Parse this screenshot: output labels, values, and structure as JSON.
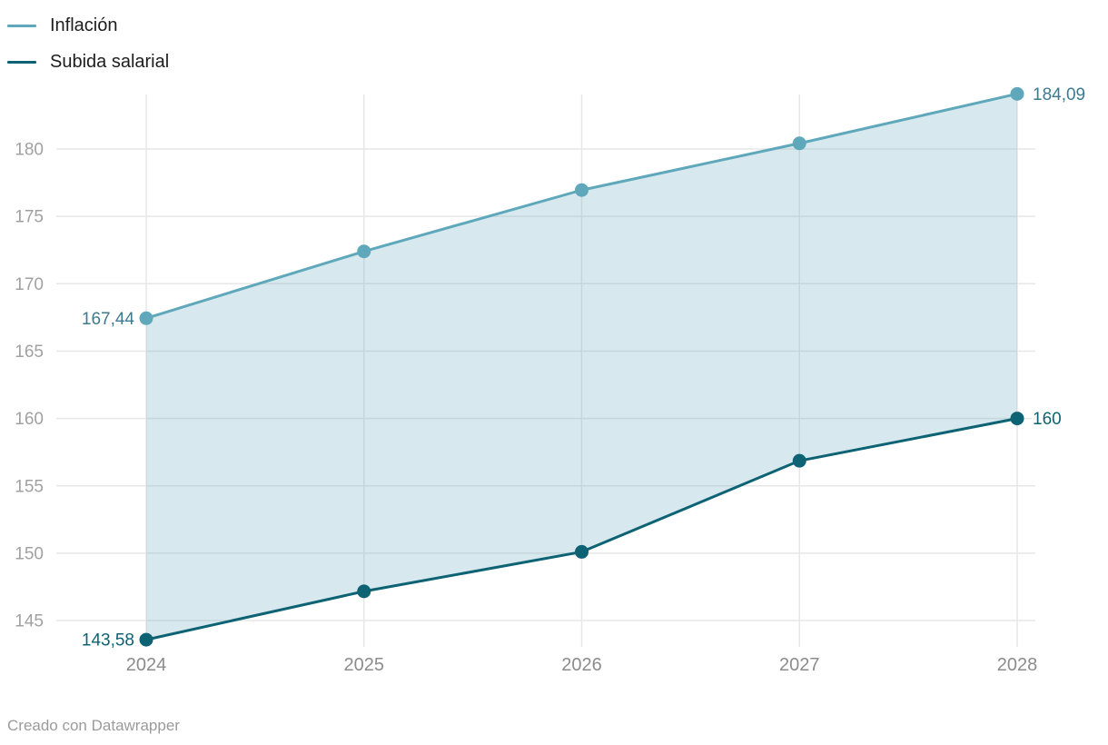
{
  "footer": {
    "attribution": "Creado con Datawrapper"
  },
  "legend": {
    "items": [
      {
        "label": "Inflación"
      },
      {
        "label": "Subida salarial"
      }
    ]
  },
  "colors": {
    "grid": "#e7e7e7",
    "y_tick_label": "#a1a1a1",
    "x_tick_label": "#8c8c8c",
    "area_fill": "rgba(95,168,187,0.25)",
    "background": "#ffffff"
  },
  "chart_data": {
    "type": "line",
    "title": "",
    "categories": [
      "2024",
      "2025",
      "2026",
      "2027",
      "2028"
    ],
    "y_ticks": [
      145,
      150,
      155,
      160,
      165,
      170,
      175,
      180
    ],
    "ylim": [
      143.1,
      184.3
    ],
    "grid": true,
    "legend_position": "top-left",
    "area_between_series": true,
    "series": [
      {
        "name": "Inflación",
        "color": "#5fa8bb",
        "label_color": "#3d7a8f",
        "values": [
          167.44,
          172.4,
          176.95,
          180.42,
          184.09
        ],
        "first_label": "167,44",
        "last_label": "184,09"
      },
      {
        "name": "Subida salarial",
        "color": "#0d6374",
        "label_color": "#0d6374",
        "values": [
          143.58,
          147.17,
          150.1,
          156.86,
          160
        ],
        "first_label": "143,58",
        "last_label": "160"
      }
    ]
  }
}
